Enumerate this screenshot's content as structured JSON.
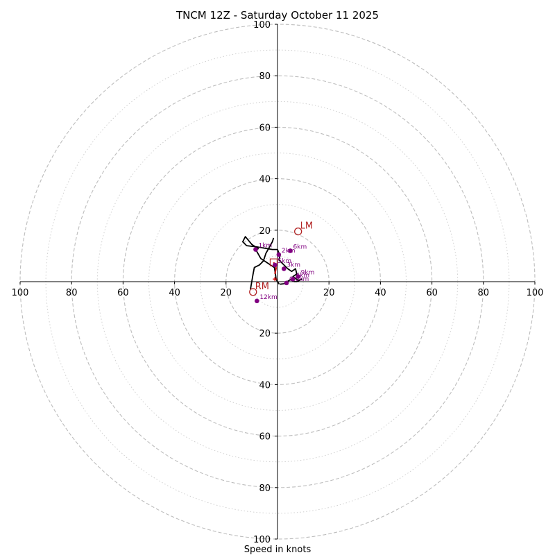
{
  "chart_data": {
    "type": "hodograph",
    "title": "TNCM 12Z - Saturday October 11 2025",
    "xlabel": "Speed in knots",
    "range_knots": 100,
    "rings_dashed": [
      20,
      40,
      60,
      80,
      100
    ],
    "rings_dotted": [
      10,
      30,
      50,
      70,
      90
    ],
    "x_tick_labels": [
      "100",
      "80",
      "60",
      "40",
      "20",
      "20",
      "40",
      "60",
      "80",
      "100"
    ],
    "y_tick_labels": [
      "100",
      "80",
      "60",
      "40",
      "20",
      "20",
      "40",
      "60",
      "80",
      "100"
    ],
    "colors": {
      "trace": "#000000",
      "height_markers": "#800080",
      "storm_motion": "#b22222",
      "inflow": "#cc0000",
      "ring_dashed": "#bdbdbd",
      "ring_dotted": "#cfcfcf"
    },
    "hodograph_trace": [
      [
        0.7,
        -1.0
      ],
      [
        -0.5,
        0.8
      ],
      [
        -0.8,
        3.0
      ],
      [
        -1.2,
        5.5
      ],
      [
        -3.5,
        7.0
      ],
      [
        -6.5,
        9.0
      ],
      [
        -8.5,
        12.5
      ],
      [
        -7.5,
        12.8
      ],
      [
        -10.0,
        14.5
      ],
      [
        -12.5,
        17.5
      ],
      [
        -13.5,
        15.5
      ],
      [
        -12.0,
        14.0
      ],
      [
        -8.0,
        13.5
      ],
      [
        -5.0,
        13.0
      ],
      [
        -2.0,
        12.5
      ],
      [
        0.0,
        12.5
      ],
      [
        1.0,
        10.0
      ],
      [
        0.5,
        8.5
      ],
      [
        2.5,
        6.5
      ],
      [
        4.0,
        5.0
      ],
      [
        5.5,
        4.0
      ],
      [
        7.0,
        5.0
      ],
      [
        7.5,
        3.0
      ],
      [
        6.0,
        2.0
      ],
      [
        8.0,
        0.5
      ],
      [
        9.5,
        1.0
      ],
      [
        7.5,
        0.0
      ],
      [
        6.5,
        0.0
      ],
      [
        5.0,
        0.8
      ],
      [
        2.5,
        -0.8
      ],
      [
        1.0,
        -1.0
      ]
    ],
    "trace_segment_b": [
      [
        -1.5,
        17.0
      ],
      [
        -2.0,
        15.5
      ],
      [
        -4.5,
        11.0
      ],
      [
        -5.5,
        8.0
      ],
      [
        -7.0,
        6.5
      ],
      [
        -9.0,
        5.5
      ],
      [
        -9.5,
        3.0
      ],
      [
        -10.0,
        0.0
      ],
      [
        -10.5,
        -3.0
      ]
    ],
    "height_markers": [
      {
        "label": "0.5km",
        "u": 3.5,
        "v": -0.5
      },
      {
        "label": "1km",
        "u": -8.5,
        "v": 12.5
      },
      {
        "label": "2km",
        "u": 0.5,
        "v": 10.5
      },
      {
        "label": "3km",
        "u": 2.5,
        "v": 5.0
      },
      {
        "label": "4km",
        "u": 6.0,
        "v": 1.0
      },
      {
        "label": "5km",
        "u": -1.0,
        "v": 6.5
      },
      {
        "label": "6km",
        "u": 5.0,
        "v": 12.0
      },
      {
        "label": "9km",
        "u": 8.0,
        "v": 2.0
      },
      {
        "label": "12km",
        "u": -8.0,
        "v": -7.5
      }
    ],
    "storm_motion": [
      {
        "label": "LM",
        "u": 8.0,
        "v": 19.5
      },
      {
        "label": "RM",
        "u": -9.5,
        "v": -4.0
      }
    ],
    "mean_wind": {
      "u": -1.5,
      "v": 7.5
    },
    "inflow_vectors": [
      {
        "from": [
          -1.5,
          7.5
        ],
        "to": [
          -0.5,
          5.5
        ]
      },
      {
        "from": [
          -0.5,
          5.5
        ],
        "to": [
          -1.0,
          3.0
        ]
      }
    ],
    "corfidi_marker": {
      "u": -1.0,
      "v": 1.0
    }
  }
}
